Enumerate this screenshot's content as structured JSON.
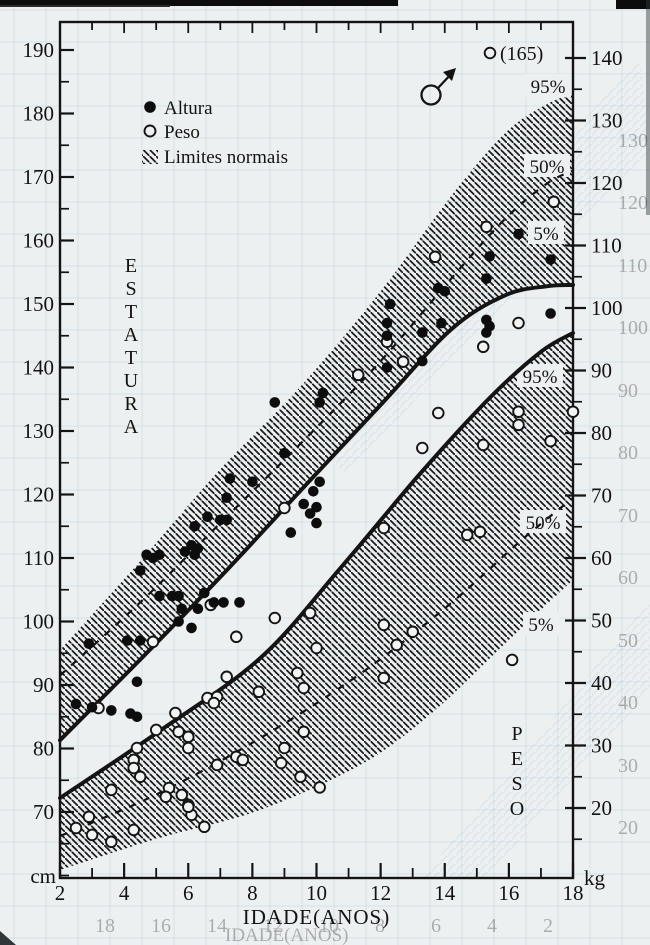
{
  "page": {
    "background": "#edf0f1",
    "ink": "#141414",
    "hatch_color": "#1a1a1a",
    "ghost_color": "#7fa8bd"
  },
  "chart_data": {
    "type": "scatter",
    "title": "",
    "x_label": "IDADE(ANOS)",
    "x_range": [
      2,
      18
    ],
    "x_major_ticks": [
      2,
      4,
      6,
      8,
      10,
      12,
      14,
      16,
      18
    ],
    "left_axis": {
      "label": "ESTATURA",
      "unit": "cm",
      "ticks": [
        190,
        180,
        170,
        160,
        150,
        140,
        130,
        120,
        110,
        100,
        90,
        80,
        70
      ],
      "minor_step": 5,
      "range": [
        60,
        193
      ]
    },
    "right_axis": {
      "label": "PESO",
      "unit": "kg",
      "ticks": [
        140,
        130,
        120,
        110,
        100,
        90,
        80,
        70,
        60,
        50,
        40,
        30,
        20
      ],
      "minor_step": 5,
      "range": [
        9,
        141
      ]
    },
    "legend": [
      {
        "marker": "filled-circle",
        "label": "Altura"
      },
      {
        "marker": "open-circle",
        "label": "Peso"
      },
      {
        "marker": "hatch-swatch",
        "label": "Limites normais"
      }
    ],
    "percentile_labels": {
      "height": [
        "95%",
        "50%",
        "5%"
      ],
      "weight": [
        "95%",
        "50%",
        "5%"
      ]
    },
    "curves": {
      "height_p95": {
        "style": "band-edge",
        "ages": [
          2,
          4.5,
          7,
          9.5,
          12,
          14.2,
          15.9,
          17.2,
          18
        ],
        "values": [
          95.5,
          109.5,
          124,
          137,
          152,
          167,
          177,
          181.5,
          183
        ]
      },
      "height_p50": {
        "style": "dashed",
        "ages": [
          2,
          4.5,
          7,
          9.5,
          12,
          14.2,
          15.9,
          17.2,
          18
        ],
        "values": [
          91.5,
          103,
          115.5,
          128,
          141,
          154,
          163.5,
          169,
          171
        ]
      },
      "height_p5": {
        "style": "thick",
        "ages": [
          2,
          4.5,
          7,
          9.5,
          12,
          14.2,
          15.9,
          17.2,
          18
        ],
        "values": [
          81.3,
          94,
          107,
          120.6,
          134.1,
          146,
          151.4,
          152.8,
          153
        ]
      },
      "weight_p95": {
        "style": "thick",
        "ages": [
          2,
          5.1,
          8.25,
          10.75,
          13.25,
          15.4,
          17,
          18
        ],
        "values": [
          21.6,
          32.3,
          44,
          58.4,
          73.6,
          85.6,
          93,
          96
        ]
      },
      "weight_p50": {
        "style": "dashed",
        "ages": [
          2,
          5.1,
          8.25,
          11.4,
          14.2,
          16.4,
          18
        ],
        "values": [
          15.5,
          22.4,
          31.2,
          41.6,
          52.8,
          62.9,
          69.6
        ]
      },
      "weight_p5": {
        "style": "band-edge",
        "ages": [
          2,
          5.1,
          8.25,
          11.4,
          13.6,
          16,
          18
        ],
        "values": [
          10.1,
          15.2,
          19.7,
          27,
          35.2,
          46.9,
          56.5
        ]
      }
    },
    "series": [
      {
        "name": "Altura",
        "unit": "cm",
        "marker": "filled",
        "points": [
          [
            2.5,
            87
          ],
          [
            3,
            86.5
          ],
          [
            3.6,
            86
          ],
          [
            4.2,
            85.5
          ],
          [
            4.4,
            85
          ],
          [
            2.9,
            96.5
          ],
          [
            4.1,
            97
          ],
          [
            4.5,
            97
          ],
          [
            4.4,
            90.5
          ],
          [
            4.7,
            110.5
          ],
          [
            4.9,
            110
          ],
          [
            5.1,
            110.5
          ],
          [
            4.5,
            108
          ],
          [
            5.1,
            104
          ],
          [
            5.5,
            104
          ],
          [
            5.7,
            104
          ],
          [
            5.8,
            102
          ],
          [
            6.3,
            102
          ],
          [
            5.7,
            100
          ],
          [
            6.1,
            99
          ],
          [
            5.9,
            111
          ],
          [
            6.2,
            110.5
          ],
          [
            6.5,
            104.5
          ],
          [
            6.8,
            103
          ],
          [
            7.1,
            103
          ],
          [
            7.6,
            103
          ],
          [
            6.1,
            112
          ],
          [
            6.3,
            111.5
          ],
          [
            6.2,
            115
          ],
          [
            6.6,
            116.5
          ],
          [
            7,
            116
          ],
          [
            7.2,
            116
          ],
          [
            7.2,
            119.5
          ],
          [
            7.3,
            122.5
          ],
          [
            8,
            122
          ],
          [
            8.7,
            134.5
          ],
          [
            9,
            126.5
          ],
          [
            9.2,
            114
          ],
          [
            9.6,
            118.5
          ],
          [
            9.8,
            117
          ],
          [
            9.9,
            120.5
          ],
          [
            10,
            118
          ],
          [
            10,
            115.5
          ],
          [
            10.1,
            122
          ],
          [
            10.1,
            134.5
          ],
          [
            10.2,
            136
          ],
          [
            12.2,
            140
          ],
          [
            12.2,
            147
          ],
          [
            12.2,
            145
          ],
          [
            12.3,
            150
          ],
          [
            13.3,
            141
          ],
          [
            13.3,
            145.5
          ],
          [
            13.8,
            152.5
          ],
          [
            14,
            152
          ],
          [
            13.9,
            147
          ],
          [
            15.3,
            145.5
          ],
          [
            15.3,
            147.5
          ],
          [
            15.4,
            146.5
          ],
          [
            15.3,
            154
          ],
          [
            15.4,
            157.5
          ],
          [
            16.3,
            161
          ],
          [
            17.3,
            157
          ],
          [
            17.3,
            148.5
          ]
        ]
      },
      {
        "name": "Peso",
        "unit": "kg",
        "marker": "open",
        "points": [
          [
            2.5,
            16.8
          ],
          [
            2.9,
            18.6
          ],
          [
            3,
            15.7
          ],
          [
            3.6,
            14.6
          ],
          [
            4.3,
            16.5
          ],
          [
            6.1,
            18.9
          ],
          [
            6.5,
            17
          ],
          [
            3.6,
            22.9
          ],
          [
            3.2,
            36
          ],
          [
            4.9,
            46.6
          ],
          [
            6.7,
            52.5
          ],
          [
            7.5,
            47.4
          ],
          [
            7.2,
            41
          ],
          [
            6.6,
            37.6
          ],
          [
            6.9,
            37.8
          ],
          [
            6.8,
            36.8
          ],
          [
            5.6,
            35.2
          ],
          [
            5,
            32.5
          ],
          [
            5.7,
            32.2
          ],
          [
            6,
            31.4
          ],
          [
            6,
            29.6
          ],
          [
            4.4,
            29.6
          ],
          [
            4.3,
            27.7
          ],
          [
            4.3,
            26.4
          ],
          [
            4.5,
            25
          ],
          [
            5.4,
            23.2
          ],
          [
            5.8,
            22.1
          ],
          [
            5.3,
            21.8
          ],
          [
            6,
            20.5
          ],
          [
            6,
            20.2
          ],
          [
            6.9,
            26.9
          ],
          [
            7.5,
            28.2
          ],
          [
            8.7,
            50.4
          ],
          [
            9.8,
            51.2
          ],
          [
            10,
            45.6
          ],
          [
            9.4,
            41.6
          ],
          [
            9.6,
            39.2
          ],
          [
            8.2,
            38.6
          ],
          [
            12.1,
            49.3
          ],
          [
            13,
            48.2
          ],
          [
            12.5,
            46.1
          ],
          [
            12.1,
            40.8
          ],
          [
            9.6,
            32.2
          ],
          [
            9,
            29.6
          ],
          [
            8.9,
            27.2
          ],
          [
            7.7,
            27.7
          ],
          [
            9.5,
            25
          ],
          [
            10.1,
            23.3
          ],
          [
            13.8,
            83.2
          ],
          [
            13.3,
            77.6
          ],
          [
            16.3,
            83.4
          ],
          [
            16.3,
            81.3
          ],
          [
            18,
            83.4
          ],
          [
            15.2,
            78.1
          ],
          [
            17.3,
            78.7
          ],
          [
            14.7,
            63.7
          ],
          [
            15.1,
            64.2
          ],
          [
            16.1,
            43.7
          ],
          [
            17.4,
            117
          ],
          [
            15.3,
            113
          ],
          [
            13.7,
            108.2
          ],
          [
            16.3,
            97.6
          ],
          [
            15.2,
            93.8
          ],
          [
            12.7,
            91.4
          ],
          [
            12.2,
            94.6
          ],
          [
            11.3,
            89.3
          ],
          [
            9,
            68
          ],
          [
            12.1,
            64.8
          ]
        ]
      }
    ],
    "annotations": {
      "male_symbol": {
        "symbol": "♂"
      },
      "offscale_point": {
        "series": "Peso",
        "age": 15.4,
        "label": "(165)"
      }
    }
  }
}
